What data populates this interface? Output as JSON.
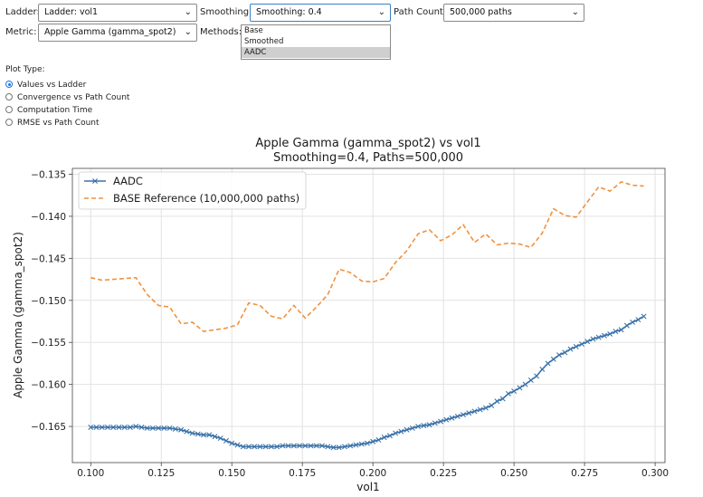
{
  "controls": {
    "ladder": {
      "label": "Ladder:",
      "value": "Ladder: vol1"
    },
    "smoothing": {
      "label": "Smoothing:",
      "value": "Smoothing: 0.4"
    },
    "path_count": {
      "label": "Path Count:",
      "value": "500,000 paths"
    },
    "metric": {
      "label": "Metric:",
      "value": "Apple Gamma (gamma_spot2)"
    },
    "methods": {
      "label": "Methods:",
      "options": [
        "Base",
        "Smoothed",
        "AADC"
      ],
      "selected": "AADC"
    }
  },
  "plot_type": {
    "label": "Plot Type:",
    "options": [
      "Values vs Ladder",
      "Convergence vs Path Count",
      "Computation Time",
      "RMSE vs Path Count"
    ],
    "selected": "Values vs Ladder"
  },
  "chart_data": {
    "type": "line",
    "title": "Apple Gamma (gamma_spot2) vs vol1",
    "subtitle": "Smoothing=0.4, Paths=500,000",
    "xlabel": "vol1",
    "ylabel": "Apple Gamma (gamma_spot2)",
    "xlim": [
      0.0935,
      0.3035
    ],
    "ylim": [
      -0.1693,
      -0.1343
    ],
    "x_ticks": [
      0.1,
      0.125,
      0.15,
      0.175,
      0.2,
      0.225,
      0.25,
      0.275,
      0.3
    ],
    "x_tick_labels": [
      "0.100",
      "0.125",
      "0.150",
      "0.175",
      "0.200",
      "0.225",
      "0.250",
      "0.275",
      "0.300"
    ],
    "y_ticks": [
      -0.165,
      -0.16,
      -0.155,
      -0.15,
      -0.145,
      -0.14,
      -0.135
    ],
    "y_tick_labels": [
      "−0.165",
      "−0.160",
      "−0.155",
      "−0.150",
      "−0.145",
      "−0.140",
      "−0.135"
    ],
    "grid": true,
    "legend": "top-left",
    "series": [
      {
        "name": "AADC",
        "color": "#3a72a9",
        "style": "solid",
        "marker": "x",
        "x": [
          0.1,
          0.102,
          0.104,
          0.106,
          0.108,
          0.11,
          0.112,
          0.114,
          0.116,
          0.118,
          0.12,
          0.122,
          0.124,
          0.126,
          0.128,
          0.13,
          0.132,
          0.134,
          0.136,
          0.138,
          0.14,
          0.142,
          0.144,
          0.146,
          0.148,
          0.15,
          0.152,
          0.154,
          0.156,
          0.158,
          0.16,
          0.162,
          0.164,
          0.166,
          0.168,
          0.17,
          0.172,
          0.174,
          0.176,
          0.178,
          0.18,
          0.182,
          0.184,
          0.186,
          0.188,
          0.19,
          0.192,
          0.194,
          0.196,
          0.198,
          0.2,
          0.202,
          0.204,
          0.206,
          0.208,
          0.21,
          0.212,
          0.214,
          0.216,
          0.218,
          0.22,
          0.222,
          0.224,
          0.226,
          0.228,
          0.23,
          0.232,
          0.234,
          0.236,
          0.238,
          0.24,
          0.242,
          0.244,
          0.246,
          0.248,
          0.25,
          0.252,
          0.254,
          0.256,
          0.258,
          0.26,
          0.262,
          0.264,
          0.266,
          0.268,
          0.27,
          0.272,
          0.274,
          0.276,
          0.278,
          0.28,
          0.282,
          0.284,
          0.286,
          0.288,
          0.29,
          0.292,
          0.294,
          0.296
        ],
        "y": [
          -0.1651,
          -0.1651,
          -0.1651,
          -0.1651,
          -0.1651,
          -0.1651,
          -0.1651,
          -0.1651,
          -0.165,
          -0.1651,
          -0.1652,
          -0.1652,
          -0.1652,
          -0.1652,
          -0.1652,
          -0.1653,
          -0.1654,
          -0.1656,
          -0.1658,
          -0.1659,
          -0.166,
          -0.166,
          -0.1662,
          -0.1664,
          -0.1667,
          -0.167,
          -0.1672,
          -0.1674,
          -0.1674,
          -0.1674,
          -0.1674,
          -0.1674,
          -0.1674,
          -0.1674,
          -0.1673,
          -0.1673,
          -0.1673,
          -0.1673,
          -0.1673,
          -0.1673,
          -0.1673,
          -0.1673,
          -0.1674,
          -0.1675,
          -0.1675,
          -0.1674,
          -0.1673,
          -0.1672,
          -0.1671,
          -0.167,
          -0.1668,
          -0.1666,
          -0.1663,
          -0.1661,
          -0.1658,
          -0.1656,
          -0.1654,
          -0.1652,
          -0.165,
          -0.1649,
          -0.1648,
          -0.1646,
          -0.1644,
          -0.1642,
          -0.164,
          -0.1638,
          -0.1636,
          -0.1634,
          -0.1632,
          -0.163,
          -0.1628,
          -0.1625,
          -0.162,
          -0.1617,
          -0.1611,
          -0.1608,
          -0.1604,
          -0.16,
          -0.1595,
          -0.159,
          -0.1582,
          -0.1575,
          -0.157,
          -0.1565,
          -0.1562,
          -0.1558,
          -0.1555,
          -0.1552,
          -0.1549,
          -0.1546,
          -0.1544,
          -0.1542,
          -0.154,
          -0.1537,
          -0.1535,
          -0.153,
          -0.1526,
          -0.1523,
          -0.1519
        ]
      },
      {
        "name": "BASE Reference (10,000,000 paths)",
        "color": "#f0913e",
        "style": "dashed",
        "marker": "none",
        "x": [
          0.1,
          0.104,
          0.108,
          0.112,
          0.116,
          0.12,
          0.124,
          0.128,
          0.132,
          0.136,
          0.14,
          0.144,
          0.148,
          0.152,
          0.156,
          0.16,
          0.164,
          0.168,
          0.172,
          0.176,
          0.18,
          0.184,
          0.188,
          0.192,
          0.196,
          0.2,
          0.204,
          0.208,
          0.212,
          0.216,
          0.22,
          0.224,
          0.228,
          0.232,
          0.236,
          0.24,
          0.244,
          0.248,
          0.252,
          0.256,
          0.26,
          0.264,
          0.268,
          0.272,
          0.276,
          0.28,
          0.284,
          0.288,
          0.292,
          0.296
        ],
        "y": [
          -0.1473,
          -0.1476,
          -0.1475,
          -0.1474,
          -0.1473,
          -0.1493,
          -0.1506,
          -0.1508,
          -0.1528,
          -0.1526,
          -0.1537,
          -0.1535,
          -0.1533,
          -0.1529,
          -0.1503,
          -0.1506,
          -0.1519,
          -0.1522,
          -0.1506,
          -0.1521,
          -0.1508,
          -0.1493,
          -0.1463,
          -0.1467,
          -0.1477,
          -0.1478,
          -0.1474,
          -0.1455,
          -0.1441,
          -0.1421,
          -0.1416,
          -0.1429,
          -0.1422,
          -0.141,
          -0.1431,
          -0.1421,
          -0.1434,
          -0.1432,
          -0.1433,
          -0.1437,
          -0.142,
          -0.1391,
          -0.1399,
          -0.1401,
          -0.1383,
          -0.1365,
          -0.137,
          -0.1359,
          -0.1363,
          -0.1364
        ]
      }
    ]
  }
}
